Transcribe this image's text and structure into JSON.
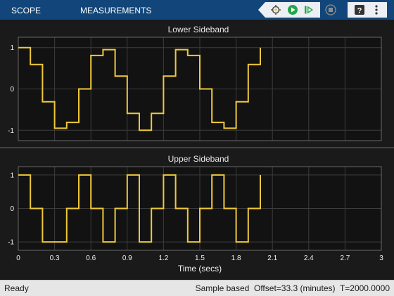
{
  "toolbar": {
    "tabs": [
      {
        "label": "SCOPE"
      },
      {
        "label": "MEASUREMENTS"
      }
    ],
    "controls": [
      {
        "icon": "highlight-signal-icon"
      },
      {
        "icon": "run-icon"
      },
      {
        "icon": "step-forward-icon"
      },
      {
        "icon": "stop-icon"
      },
      {
        "icon": "help-icon"
      },
      {
        "icon": "menu-icon"
      }
    ]
  },
  "status": {
    "left": "Ready",
    "mode": "Sample based",
    "offset": "Offset=33.3 (minutes)",
    "time": "T=2000.0000"
  },
  "colors": {
    "toolbar": "#12467a",
    "plot_bg": "#121212",
    "signal": "#f0c93a",
    "grid": "#3c3c3c",
    "run_green": "#22a64a"
  },
  "chart_data": [
    {
      "type": "line",
      "title": "Lower Sideband",
      "xlim": [
        0,
        3
      ],
      "ylim": [
        -1.25,
        1.25
      ],
      "yticks": [
        -1,
        0,
        1
      ],
      "ytick_labels": [
        "-1",
        "0",
        "1"
      ],
      "grid": true,
      "step": true,
      "series": [
        {
          "x": [
            0,
            0.1,
            0.2,
            0.3,
            0.4,
            0.5,
            0.6,
            0.7,
            0.8,
            0.9,
            1.0,
            1.1,
            1.2,
            1.3,
            1.4,
            1.5,
            1.6,
            1.7,
            1.8,
            1.9,
            2.0
          ],
          "values": [
            1.0,
            0.59,
            -0.31,
            -0.95,
            -0.81,
            0.0,
            0.81,
            0.95,
            0.31,
            -0.59,
            -1.0,
            -0.59,
            0.31,
            0.95,
            0.81,
            0.0,
            -0.81,
            -0.95,
            -0.31,
            0.59,
            1.0
          ]
        }
      ]
    },
    {
      "type": "line",
      "title": "Upper Sideband",
      "xlim": [
        0,
        3
      ],
      "ylim": [
        -1.25,
        1.25
      ],
      "yticks": [
        -1,
        0,
        1
      ],
      "ytick_labels": [
        "-1",
        "0",
        "1"
      ],
      "xticks": [
        0,
        0.3,
        0.6,
        0.9,
        1.2,
        1.5,
        1.8,
        2.1,
        2.4,
        2.7,
        3
      ],
      "xtick_labels": [
        "0",
        "0.3",
        "0.6",
        "0.9",
        "1.2",
        "1.5",
        "1.8",
        "2.1",
        "2.4",
        "2.7",
        "3"
      ],
      "xlabel": "Time (secs)",
      "grid": true,
      "step": true,
      "series": [
        {
          "x": [
            0,
            0.1,
            0.2,
            0.3,
            0.4,
            0.5,
            0.6,
            0.7,
            0.8,
            0.9,
            1.0,
            1.1,
            1.2,
            1.3,
            1.4,
            1.5,
            1.6,
            1.7,
            1.8,
            1.9,
            2.0
          ],
          "values": [
            1.0,
            0.0,
            -1.0,
            -1.0,
            0.0,
            1.0,
            0.0,
            -1.0,
            0.0,
            1.0,
            -1.0,
            0.0,
            1.0,
            0.0,
            -1.0,
            0.0,
            1.0,
            0.0,
            -1.0,
            0.0,
            1.0
          ]
        }
      ]
    }
  ]
}
